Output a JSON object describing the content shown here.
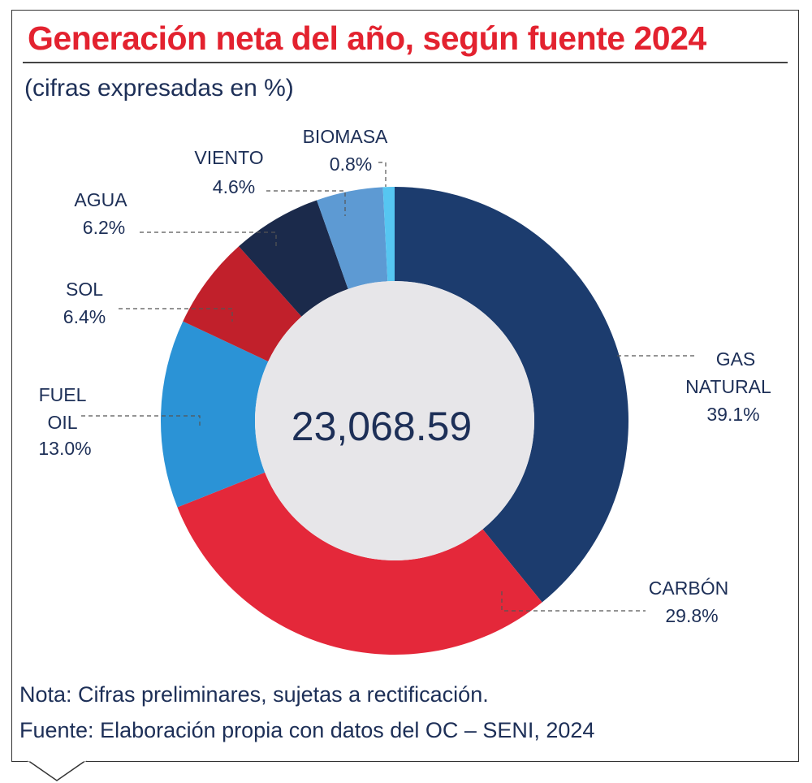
{
  "title": "Generación neta del año, según fuente 2024",
  "subtitle": "(cifras expresadas en %)",
  "center_value": "23,068.59",
  "note": "Nota: Cifras preliminares, sujetas a rectificación.",
  "source": "Fuente: Elaboración propia con datos del OC – SENI, 2024",
  "chart_data": {
    "type": "pie",
    "donut": true,
    "center_label": "23,068.59",
    "unit": "%",
    "slices": [
      {
        "label": "GAS NATURAL",
        "value": 39.1,
        "value_label": "39.1%",
        "color": "#1c3c6e"
      },
      {
        "label": "CARBÓN",
        "value": 29.8,
        "value_label": "29.8%",
        "color": "#e4283a"
      },
      {
        "label": "FUEL OIL",
        "value": 13.0,
        "value_label": "13.0%",
        "color": "#2b93d6"
      },
      {
        "label": "SOL",
        "value": 6.4,
        "value_label": "6.4%",
        "color": "#c1202b"
      },
      {
        "label": "AGUA",
        "value": 6.2,
        "value_label": "6.2%",
        "color": "#1b2a4b"
      },
      {
        "label": "VIENTO",
        "value": 4.6,
        "value_label": "4.6%",
        "color": "#5d9ad3"
      },
      {
        "label": "BIOMASA",
        "value": 0.8,
        "value_label": "0.8%",
        "color": "#56c6f1"
      }
    ]
  }
}
